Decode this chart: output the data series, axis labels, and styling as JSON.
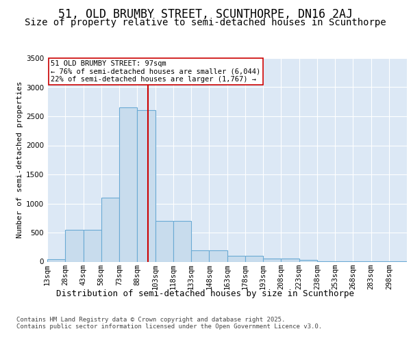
{
  "title1": "51, OLD BRUMBY STREET, SCUNTHORPE, DN16 2AJ",
  "title2": "Size of property relative to semi-detached houses in Scunthorpe",
  "xlabel": "Distribution of semi-detached houses by size in Scunthorpe",
  "ylabel": "Number of semi-detached properties",
  "bin_edges": [
    13,
    28,
    43,
    58,
    73,
    88,
    103,
    118,
    133,
    148,
    163,
    178,
    193,
    208,
    223,
    238,
    253,
    268,
    283,
    298,
    313
  ],
  "bar_heights": [
    40,
    550,
    550,
    1100,
    2650,
    2600,
    700,
    700,
    200,
    200,
    100,
    100,
    50,
    50,
    30,
    5,
    5,
    5,
    5,
    5
  ],
  "bar_color": "#c8dced",
  "bar_edge_color": "#6aaad4",
  "property_value": 97,
  "vline_color": "#cc0000",
  "annotation_line1": "51 OLD BRUMBY STREET: 97sqm",
  "annotation_line2": "← 76% of semi-detached houses are smaller (6,044)",
  "annotation_line3": "22% of semi-detached houses are larger (1,767) →",
  "annotation_box_color": "#cc0000",
  "ylim": [
    0,
    3500
  ],
  "yticks": [
    0,
    500,
    1000,
    1500,
    2000,
    2500,
    3000,
    3500
  ],
  "bg_color": "#ffffff",
  "plot_bg_color": "#dce8f5",
  "footer_text": "Contains HM Land Registry data © Crown copyright and database right 2025.\nContains public sector information licensed under the Open Government Licence v3.0.",
  "title1_fontsize": 12,
  "title2_fontsize": 10,
  "xlabel_fontsize": 9,
  "ylabel_fontsize": 8,
  "tick_fontsize": 7.5,
  "annotation_fontsize": 7.5,
  "footer_fontsize": 6.5
}
